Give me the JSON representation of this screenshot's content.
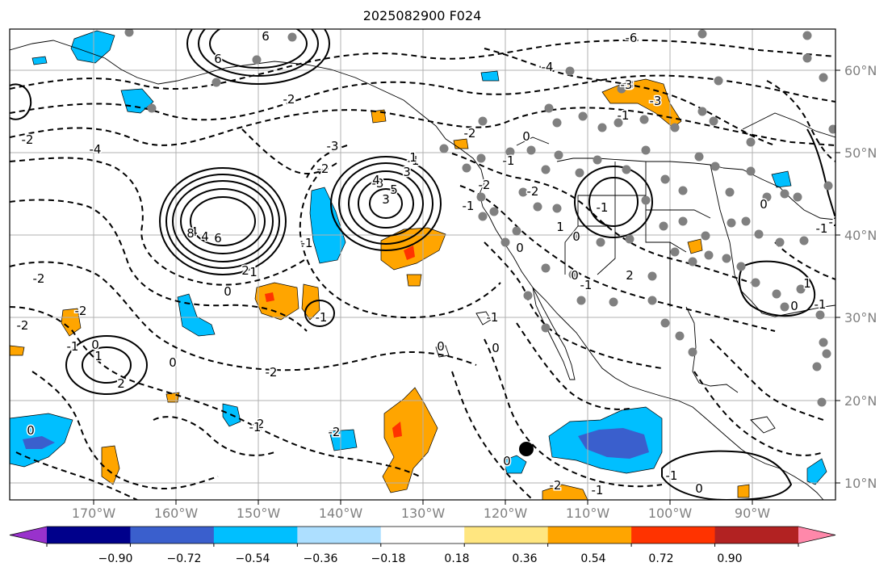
{
  "title": "2025082900 F024",
  "map": {
    "projection": "cylindrical",
    "lon_range": [
      -180,
      -80
    ],
    "lat_range": [
      8,
      65
    ],
    "grid": true,
    "field": "shaded anomaly with black contours (solid positive, dashed negative)"
  },
  "lat_labels": [
    "10°N",
    "20°N",
    "30°N",
    "40°N",
    "50°N",
    "60°N"
  ],
  "lon_labels": [
    "170°W",
    "160°W",
    "150°W",
    "140°W",
    "130°W",
    "120°W",
    "110°W",
    "100°W",
    "90°W"
  ],
  "colorbar": {
    "colors": [
      "#9932CC",
      "#00008B",
      "#3A5FCD",
      "#00BFFF",
      "#ADDFFF",
      "#FFFFFF",
      "#FFE680",
      "#FFA500",
      "#FF3300",
      "#B22222",
      "#FF88AA"
    ],
    "tick_labels": [
      "−0.90",
      "−0.72",
      "−0.54",
      "−0.36",
      "−0.18",
      "0.18",
      "0.36",
      "0.54",
      "0.72",
      "0.90"
    ]
  },
  "contour_labels": [
    "6",
    "6",
    "-6",
    "-4",
    "-3",
    "-2",
    "-3",
    "-2",
    "-1",
    "-3",
    "-4",
    "-2",
    "-1",
    "0",
    "-3",
    "-2",
    "-2",
    "-1",
    "0",
    "1",
    "3",
    "4",
    "5",
    "3",
    "4",
    "8",
    "6",
    "4",
    "2",
    "1",
    "-1",
    "-2",
    "-2",
    "0",
    "-1",
    "-2",
    "0",
    "-1",
    "-2",
    "-2",
    "-1",
    "2",
    "1",
    "0",
    "-2",
    "0",
    "-1",
    "0",
    "-1",
    "-2",
    "-1",
    "0",
    "0",
    "0",
    "-1",
    "0",
    "0",
    "0",
    "2",
    "-1",
    "1",
    "-1",
    "1",
    "-3",
    "-2",
    "-1",
    "-2",
    "-1",
    "0"
  ],
  "shaded_features": [
    {
      "region": "Gulf of Alaska west",
      "level": "negative"
    },
    {
      "region": "Central Pacific 40N",
      "level": "negative"
    },
    {
      "region": "Northeast Pacific 40N 130W",
      "level": "positive"
    },
    {
      "region": "Eastern tropical Pacific 15N 105W",
      "level": "strong negative"
    },
    {
      "region": "Subtropical Pacific 20N 130W",
      "level": "positive"
    },
    {
      "region": "Hudson Bay",
      "level": "positive"
    }
  ],
  "markers": {
    "station_dot_color": "#808080",
    "highlight_dot_color": "#000000"
  }
}
